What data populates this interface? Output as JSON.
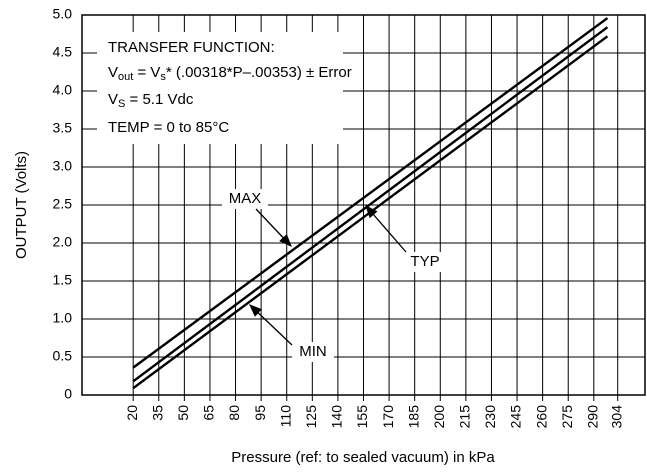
{
  "chart_data": {
    "type": "line",
    "y_label": "OUTPUT (Volts)",
    "x_label": "Pressure (ref: to sealed vacuum) in kPa",
    "annotation": [
      [
        "TRANSFER FUNCTION:"
      ],
      [
        "V",
        "out",
        " = V",
        "s",
        "* (.00318*P–.00353) ± Error"
      ],
      [
        "V",
        "S",
        " = 5.1 Vdc"
      ],
      [
        "TEMP = 0 to 85°C"
      ]
    ],
    "x": [
      20,
      298
    ],
    "series": [
      {
        "name": "MAX",
        "color": "#000000",
        "values": [
          0.36,
          4.96
        ]
      },
      {
        "name": "TYP",
        "color": "#000000",
        "values": [
          0.18,
          4.84
        ]
      },
      {
        "name": "MIN",
        "color": "#000000",
        "values": [
          0.09,
          4.72
        ]
      }
    ],
    "xlim": [
      -10,
      320
    ],
    "xticks": [
      20,
      35,
      50,
      65,
      80,
      95,
      110,
      125,
      140,
      155,
      170,
      185,
      200,
      215,
      230,
      245,
      260,
      275,
      290,
      304
    ],
    "ylim": [
      0,
      5
    ],
    "yticks": [
      0,
      0.5,
      {
        "value": 1,
        "label": "1.0"
      },
      1.5,
      {
        "value": 2,
        "label": "2.0"
      },
      2.5,
      {
        "value": 3,
        "label": "3.0"
      },
      3.5,
      {
        "value": 4,
        "label": "4.0"
      },
      4.5,
      {
        "value": 5,
        "label": "5.0"
      }
    ],
    "grid": true
  }
}
